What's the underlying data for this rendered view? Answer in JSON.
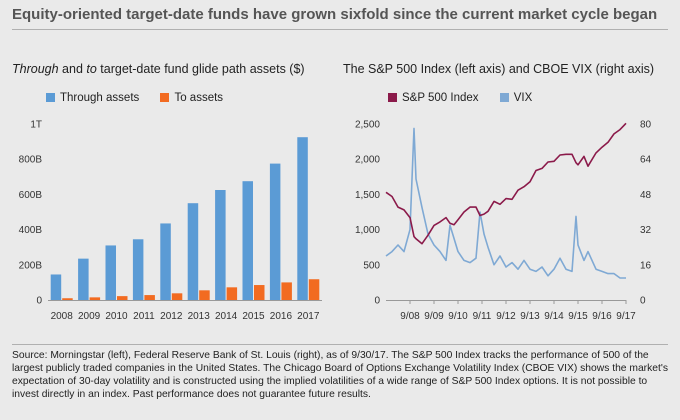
{
  "headline": "Equity-oriented target-date funds have grown sixfold since the current market cycle began",
  "source_note": "Source: Morningstar (left), Federal Reserve Bank of St. Louis (right), as of 9/30/17. The S&P 500 Index tracks the performance of 500 of the largest publicly traded companies in the United States. The Chicago Board of Options Exchange Volatility Index (CBOE VIX) shows the market's expectation of 30-day volatility and is constructed using the implied volatilities of a wide range of S&P 500 Index options. It is not possible to invest directly in an index. Past performance does not guarantee future results.",
  "chart_data": [
    {
      "type": "bar",
      "title_parts": {
        "through": "Through",
        "and": " and ",
        "to": "to",
        "rest": " target-date fund glide path assets ($)"
      },
      "categories": [
        "2008",
        "2009",
        "2010",
        "2011",
        "2012",
        "2013",
        "2014",
        "2015",
        "2016",
        "2017"
      ],
      "series": [
        {
          "name": "Through assets",
          "color": "#5b9bd5",
          "values": [
            145,
            235,
            310,
            345,
            435,
            550,
            625,
            675,
            775,
            925
          ]
        },
        {
          "name": "To assets",
          "color": "#f26b21",
          "values": [
            10,
            15,
            22,
            28,
            38,
            55,
            72,
            85,
            100,
            118
          ]
        }
      ],
      "ylim": [
        0,
        1000
      ],
      "yticks": [
        0,
        200,
        400,
        600,
        800,
        1000
      ],
      "ytick_labels": [
        "0",
        "200B",
        "400B",
        "600B",
        "800B",
        "1T"
      ],
      "grid": false,
      "legend_position": "top-left"
    },
    {
      "type": "line",
      "title": "The S&P 500 Index (left axis) and CBOE VIX (right axis)",
      "x": [
        "9/07",
        "12/07",
        "3/08",
        "6/08",
        "9/08",
        "11/08",
        "12/08",
        "3/09",
        "6/09",
        "9/09",
        "12/09",
        "3/10",
        "5/10",
        "7/10",
        "9/10",
        "12/10",
        "3/11",
        "6/11",
        "8/11",
        "10/11",
        "12/11",
        "3/12",
        "6/12",
        "9/12",
        "12/12",
        "3/13",
        "6/13",
        "9/13",
        "12/13",
        "3/14",
        "6/14",
        "9/14",
        "12/14",
        "3/15",
        "6/15",
        "8/15",
        "9/15",
        "12/15",
        "2/16",
        "6/16",
        "9/16",
        "12/16",
        "3/17",
        "6/17",
        "9/17"
      ],
      "series": [
        {
          "name": "S&P 500 Index",
          "axis": "left",
          "color": "#8b1a4a",
          "values": [
            1530,
            1470,
            1320,
            1280,
            1170,
            900,
            870,
            800,
            920,
            1060,
            1110,
            1170,
            1090,
            1070,
            1140,
            1250,
            1320,
            1320,
            1200,
            1220,
            1260,
            1400,
            1360,
            1440,
            1430,
            1560,
            1610,
            1680,
            1840,
            1870,
            1960,
            1970,
            2060,
            2070,
            2070,
            1950,
            1920,
            2040,
            1900,
            2090,
            2170,
            2240,
            2360,
            2420,
            2510
          ]
        },
        {
          "name": "VIX",
          "axis": "right",
          "color": "#7fa9d4",
          "values": [
            20,
            22,
            25,
            22,
            32,
            78,
            55,
            42,
            30,
            25,
            22,
            18,
            34,
            28,
            22,
            18,
            17,
            19,
            40,
            30,
            24,
            16,
            20,
            15,
            17,
            14,
            18,
            14,
            13,
            15,
            11,
            14,
            19,
            14,
            13,
            38,
            25,
            18,
            22,
            14,
            13,
            12,
            12,
            10,
            10
          ]
        }
      ],
      "xticks": [
        "9/08",
        "9/09",
        "9/10",
        "9/11",
        "9/12",
        "9/13",
        "9/14",
        "9/15",
        "9/16",
        "9/17"
      ],
      "ylim_left": [
        0,
        2500
      ],
      "yticks_left": [
        0,
        500,
        1000,
        1500,
        2000,
        2500
      ],
      "ytick_labels_left": [
        "0",
        "500",
        "1,000",
        "1,500",
        "2,000",
        "2,500"
      ],
      "ylim_right": [
        0,
        80
      ],
      "yticks_right": [
        0,
        16,
        32,
        48,
        64,
        80
      ],
      "ytick_labels_right": [
        "0",
        "16",
        "32",
        "48",
        "64",
        "80"
      ],
      "grid": false,
      "legend_position": "top-left"
    }
  ]
}
